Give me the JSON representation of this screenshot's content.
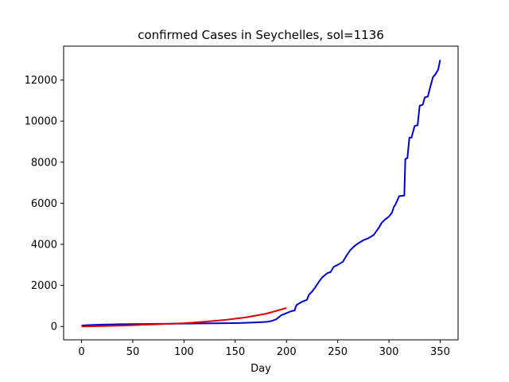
{
  "chart_data": {
    "type": "line",
    "title": "confirmed Cases in Seychelles, sol=1136",
    "xlabel": "Day",
    "ylabel": "",
    "xlim": [
      -17.5,
      367.5
    ],
    "ylim": [
      -650,
      13650
    ],
    "xticks": [
      0,
      50,
      100,
      150,
      200,
      250,
      300,
      350
    ],
    "yticks": [
      0,
      2000,
      4000,
      6000,
      8000,
      10000,
      12000
    ],
    "grid": false,
    "legend": "none",
    "series": [
      {
        "color": "#0000cc",
        "x": [
          0,
          5,
          10,
          20,
          40,
          60,
          80,
          100,
          120,
          140,
          150,
          160,
          170,
          180,
          185,
          190,
          195,
          200,
          205,
          208,
          209,
          210,
          215,
          220,
          222,
          225,
          228,
          232,
          235,
          240,
          243,
          246,
          250,
          255,
          258,
          262,
          266,
          270,
          275,
          280,
          285,
          290,
          293,
          296,
          300,
          303,
          305,
          306,
          310,
          311,
          315,
          316,
          318,
          320,
          322,
          325,
          326,
          328,
          330,
          333,
          335,
          338,
          340,
          343,
          345,
          348,
          350
        ],
        "y": [
          50,
          60,
          70,
          90,
          110,
          120,
          130,
          140,
          150,
          160,
          165,
          180,
          200,
          220,
          260,
          350,
          550,
          650,
          750,
          780,
          950,
          1050,
          1200,
          1300,
          1550,
          1700,
          1900,
          2200,
          2400,
          2600,
          2650,
          2900,
          3000,
          3150,
          3400,
          3700,
          3900,
          4050,
          4200,
          4300,
          4450,
          4800,
          5050,
          5200,
          5350,
          5550,
          5850,
          5900,
          6350,
          6350,
          6380,
          8150,
          8200,
          9200,
          9200,
          9750,
          9780,
          9800,
          10750,
          10800,
          11150,
          11200,
          11600,
          12150,
          12250,
          12500,
          12980
        ]
      },
      {
        "color": "#e00000",
        "x": [
          0,
          20,
          40,
          60,
          80,
          100,
          120,
          140,
          160,
          180,
          200
        ],
        "y": [
          0,
          20,
          45,
          80,
          120,
          160,
          230,
          320,
          440,
          620,
          900
        ]
      }
    ]
  }
}
